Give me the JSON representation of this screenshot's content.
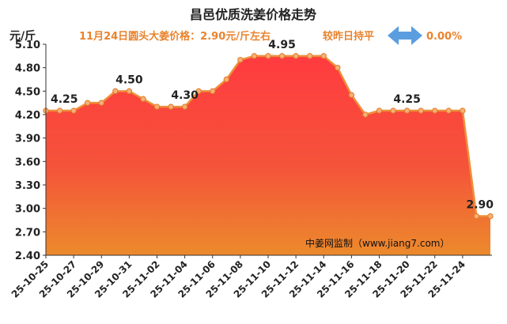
{
  "chart_data": {
    "type": "area",
    "title": "昌邑优质洗姜价格走势",
    "subtitle": "11月24日圆头大姜价格：2.90元/斤左右",
    "change_label": "较昨日持平",
    "change_value": "0.00%",
    "ylabel": "元/斤",
    "ylim": [
      2.4,
      5.1
    ],
    "yticks": [
      "5.10",
      "4.80",
      "4.50",
      "4.20",
      "3.90",
      "3.60",
      "3.30",
      "3.00",
      "2.70",
      "2.40"
    ],
    "x_tick_labels": [
      "25-10-25",
      "25-10-27",
      "25-10-29",
      "25-10-31",
      "25-11-02",
      "25-11-04",
      "25-11-06",
      "25-11-08",
      "25-11-10",
      "25-11-12",
      "25-11-14",
      "25-11-16",
      "25-11-18",
      "25-11-20",
      "25-11-22",
      "25-11-24"
    ],
    "values": [
      4.25,
      4.25,
      4.25,
      4.35,
      4.35,
      4.5,
      4.5,
      4.4,
      4.3,
      4.3,
      4.3,
      4.5,
      4.5,
      4.65,
      4.9,
      4.95,
      4.95,
      4.95,
      4.95,
      4.95,
      4.95,
      4.8,
      4.45,
      4.2,
      4.25,
      4.25,
      4.25,
      4.25,
      4.25,
      4.25,
      4.25,
      2.9,
      2.9
    ],
    "data_labels": [
      {
        "index": 0,
        "text": "4.25"
      },
      {
        "index": 6,
        "text": "4.50"
      },
      {
        "index": 10,
        "text": "4.30"
      },
      {
        "index": 17,
        "text": "4.95"
      },
      {
        "index": 26,
        "text": "4.25"
      },
      {
        "index": 32,
        "text": "2.90"
      }
    ],
    "grid": false,
    "colors": {
      "area_top": "#ff3b3f",
      "area_bottom": "#ec8a2c",
      "line": "#ee8f3a",
      "marker": "#f5b076",
      "subtitle": "#e9832d",
      "arrow": "#5a9ee0"
    }
  },
  "watermark": "中姜网监制（www.jiang7.com）"
}
